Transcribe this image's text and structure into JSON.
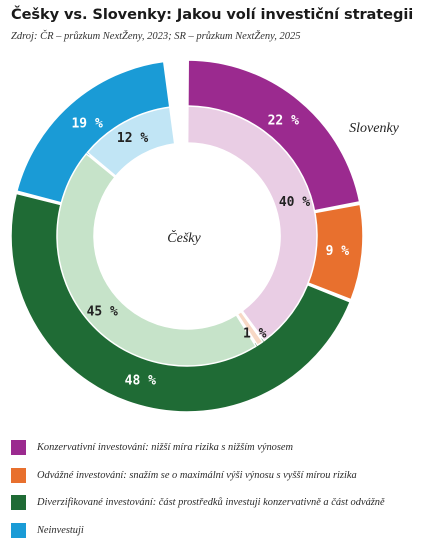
{
  "title": "Češky vs. Slovenky: Jakou volí investiční strategii",
  "subtitle": "Zdroj: ČR – průzkum NextŽeny, 2023; SR – průzkum NextŽeny, 2025",
  "chart_data": {
    "type": "pie",
    "categories": [
      "Konzervativní investování: nižší míra rizika s nižším výnosem",
      "Odvážné investování: snažím se o maximální výši výnosu s vyšší mírou rizika",
      "Diverzifikované investování: část prostředků investuji konzervativně a část odvážně",
      "Neinvestuji"
    ],
    "series": [
      {
        "name": "Slovenky",
        "values": [
          22,
          9,
          48,
          19
        ],
        "labels": [
          "22 %",
          "9 %",
          "48 %",
          "19 %"
        ]
      },
      {
        "name": "Češky",
        "values": [
          40,
          1,
          45,
          12
        ],
        "labels": [
          "40 %",
          "1 %",
          "45 %",
          "12 %"
        ]
      }
    ],
    "colors": [
      "#9b2a8f",
      "#e8702e",
      "#1f6b35",
      "#1a9bd6"
    ],
    "inner_colors": [
      "#e9cde4",
      "#f7d8c5",
      "#c6e3c9",
      "#c1e5f5"
    ]
  }
}
